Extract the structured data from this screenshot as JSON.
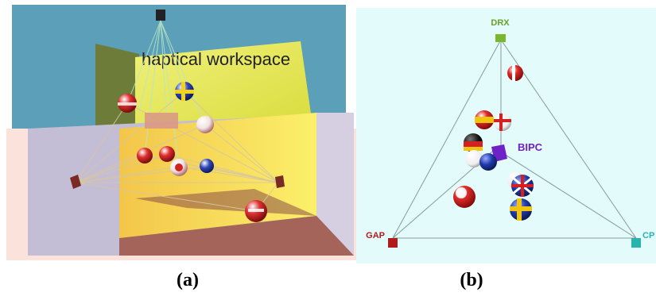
{
  "panel_a": {
    "wall_label": "haptical workspace",
    "caption": "(a)"
  },
  "panel_b": {
    "nodes": {
      "top": "DRX",
      "left": "GAP",
      "right": "CP",
      "center": "BIPC"
    },
    "caption": "(b)"
  },
  "colors": {
    "sky": "#5b9fb8",
    "wall_yellow": "#e8ea55",
    "room_lavender": "#c4bdd6",
    "room_pink": "#fbe3dc",
    "floor_brown": "#a4645a",
    "panel_b_bg": "#e3fbfb",
    "drx_green": "#7ab72e",
    "gap_red": "#b01c1c",
    "cp_teal": "#2ab3ad",
    "bipc_purple": "#6e22c8"
  }
}
